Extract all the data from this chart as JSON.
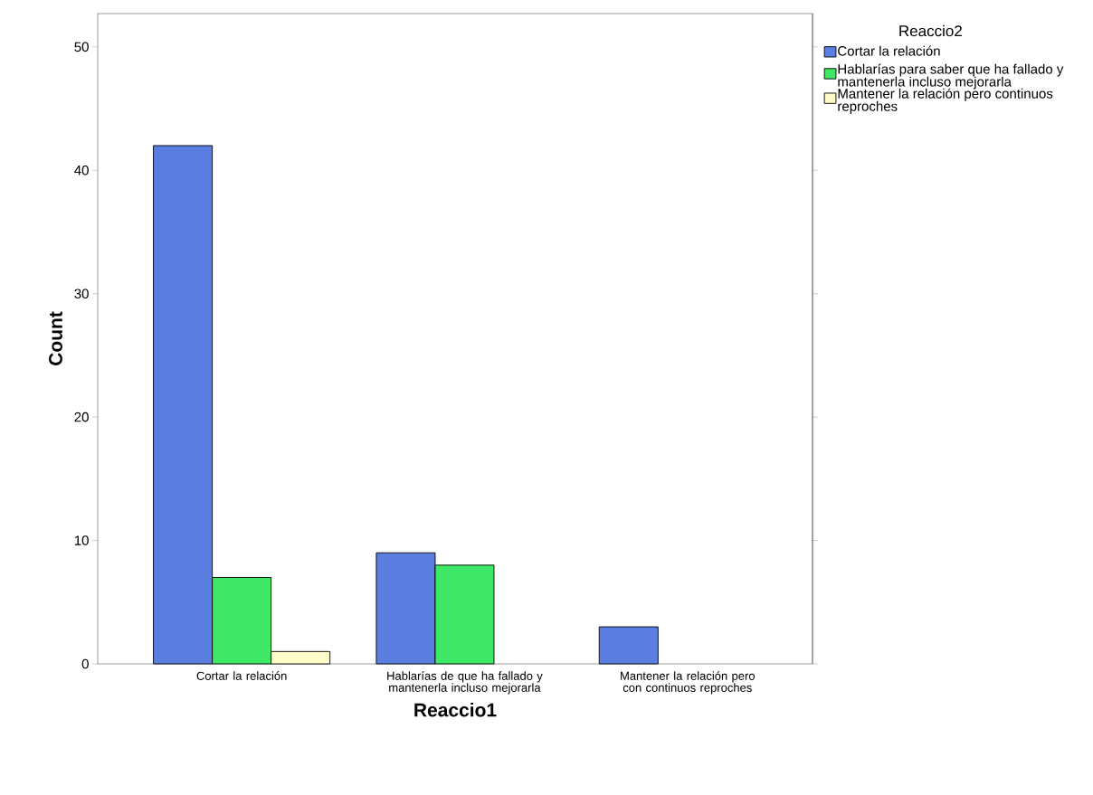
{
  "chart_data": {
    "type": "bar",
    "xlabel": "Reaccio1",
    "ylabel": "Count",
    "legend_title": "Reaccio2",
    "categories": [
      "Cortar la relación",
      "Hablarías de que ha fallado y mantenerla incluso mejorarla",
      "Mantener la relación pero con continuos reproches"
    ],
    "series": [
      {
        "name": "Cortar la relación",
        "color": "#5b7fe0",
        "values": [
          42,
          9,
          3
        ]
      },
      {
        "name": "Hablarías para saber que ha fallado y mantenerla incluso mejorarla",
        "color": "#3ee866",
        "values": [
          7,
          8,
          null
        ]
      },
      {
        "name": "Mantener la relación pero continuos reproches",
        "color": "#fffcc8",
        "values": [
          1,
          null,
          null
        ]
      }
    ],
    "ylim": [
      0,
      52.7
    ],
    "yticks": [
      0,
      10,
      20,
      30,
      40,
      50
    ],
    "grid": false,
    "legend": "top right"
  }
}
